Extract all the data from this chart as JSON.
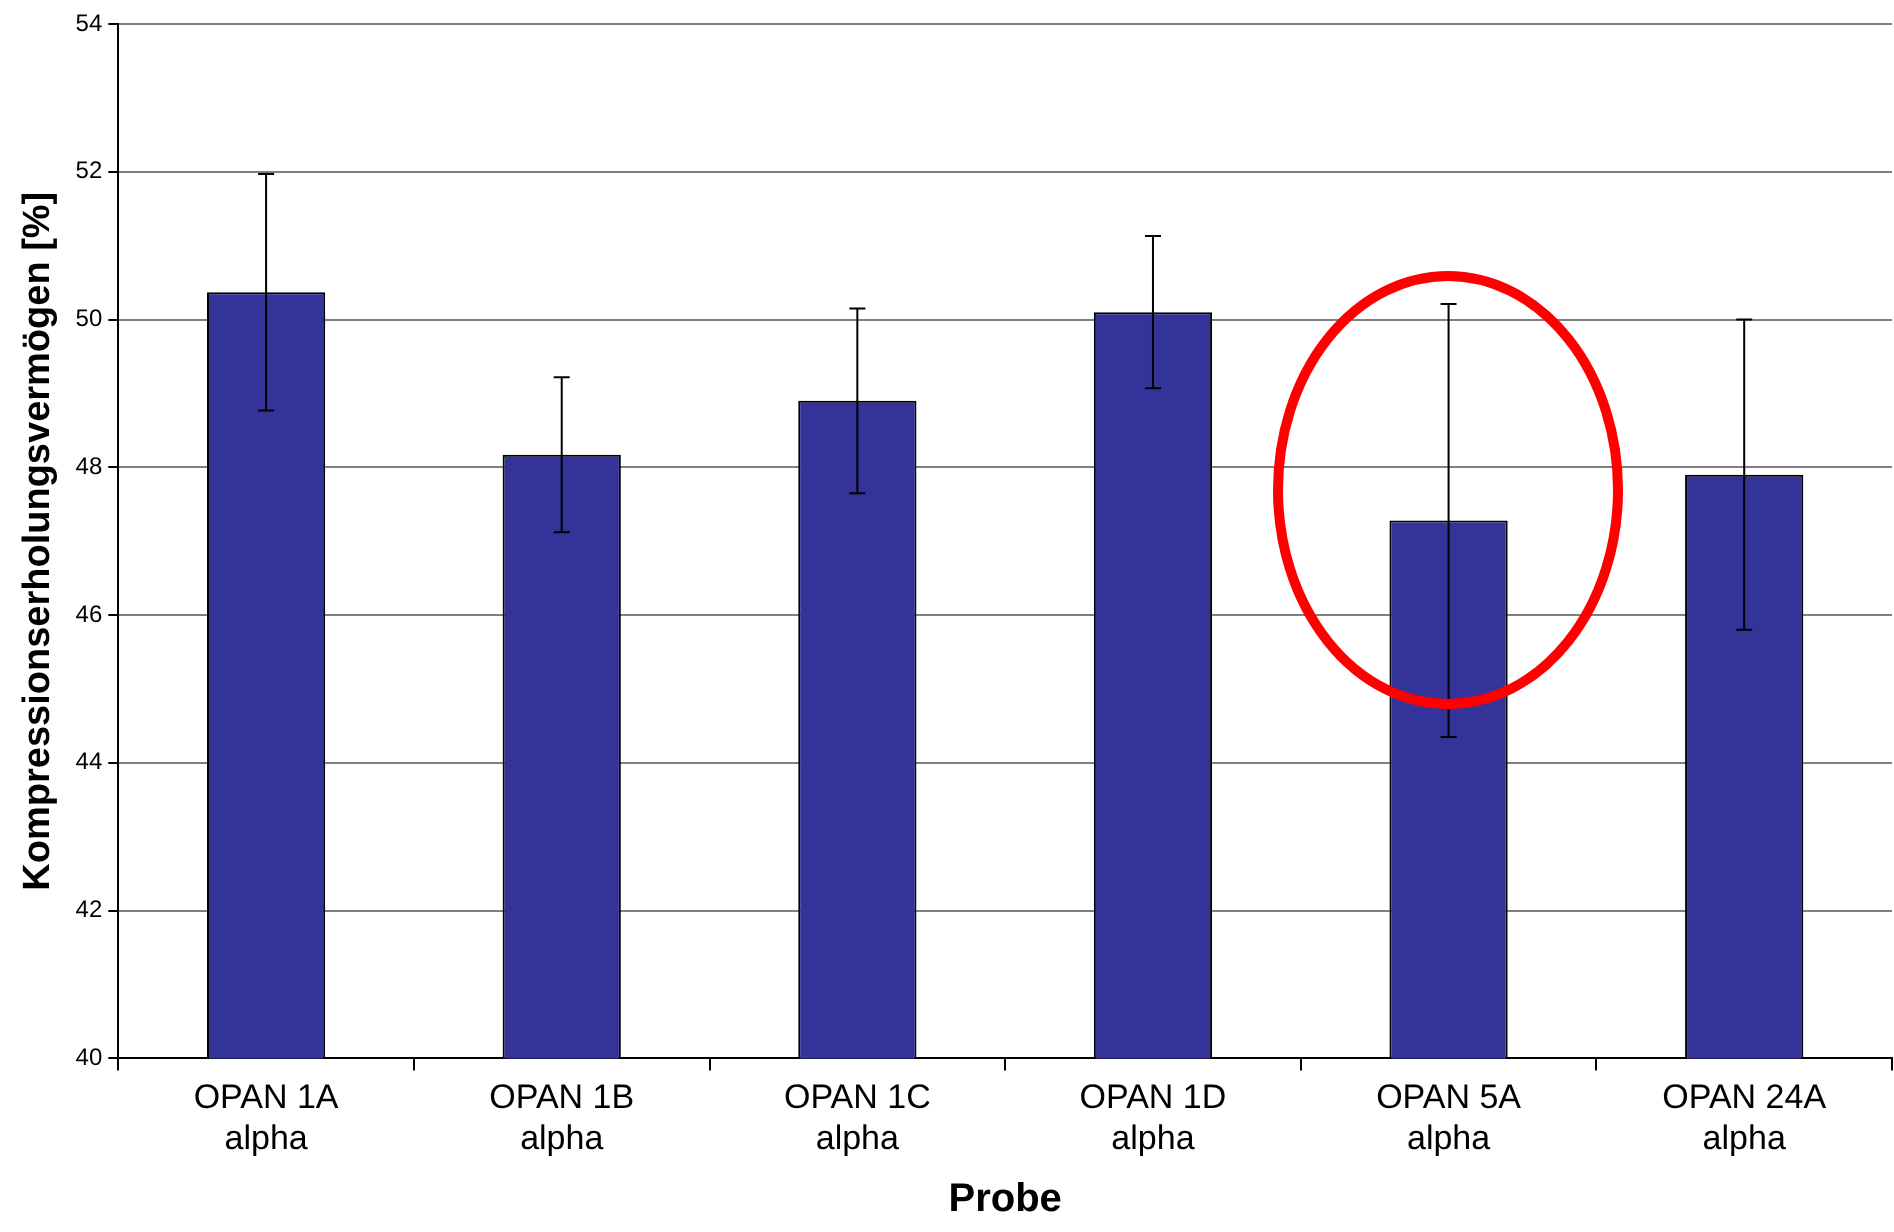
{
  "chart_data": {
    "type": "bar",
    "xlabel": "Probe",
    "ylabel": "Kompressionserholungsvermögen [%]",
    "categories": [
      "OPAN 1A alpha",
      "OPAN 1B alpha",
      "OPAN 1C alpha",
      "OPAN 1D alpha",
      "OPAN 5A alpha",
      "OPAN 24A alpha"
    ],
    "values": [
      50.37,
      48.17,
      48.9,
      50.1,
      47.28,
      47.9
    ],
    "errors": [
      1.6,
      1.05,
      1.25,
      1.03,
      2.93,
      2.1
    ],
    "color": "#333399",
    "ylim": [
      40,
      54
    ],
    "yticks": [
      40,
      42,
      44,
      46,
      48,
      50,
      52,
      54
    ],
    "grid": "y",
    "legend": false
  }
}
